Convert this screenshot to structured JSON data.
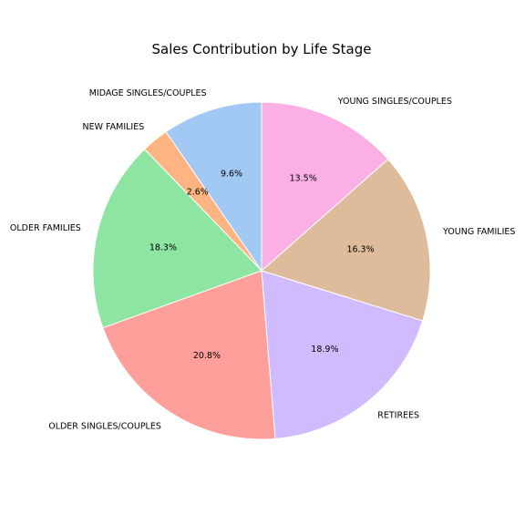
{
  "chart_data": {
    "type": "pie",
    "title": "Sales Contribution by Life Stage",
    "start_angle_deg": 90,
    "direction": "counterclockwise",
    "slices": [
      {
        "label": "MIDAGE SINGLES/COUPLES",
        "value": 9.6,
        "pct_label": "9.6%",
        "color": "#a1c9f4"
      },
      {
        "label": "NEW FAMILIES",
        "value": 2.6,
        "pct_label": "2.6%",
        "color": "#ffb482"
      },
      {
        "label": "OLDER FAMILIES",
        "value": 18.3,
        "pct_label": "18.3%",
        "color": "#8de5a1"
      },
      {
        "label": "OLDER SINGLES/COUPLES",
        "value": 20.8,
        "pct_label": "20.8%",
        "color": "#ff9f9b"
      },
      {
        "label": "RETIREES",
        "value": 18.9,
        "pct_label": "18.9%",
        "color": "#d0bbff"
      },
      {
        "label": "YOUNG FAMILIES",
        "value": 16.3,
        "pct_label": "16.3%",
        "color": "#debb9b"
      },
      {
        "label": "YOUNG SINGLES/COUPLES",
        "value": 13.5,
        "pct_label": "13.5%",
        "color": "#fab0e4"
      }
    ]
  }
}
